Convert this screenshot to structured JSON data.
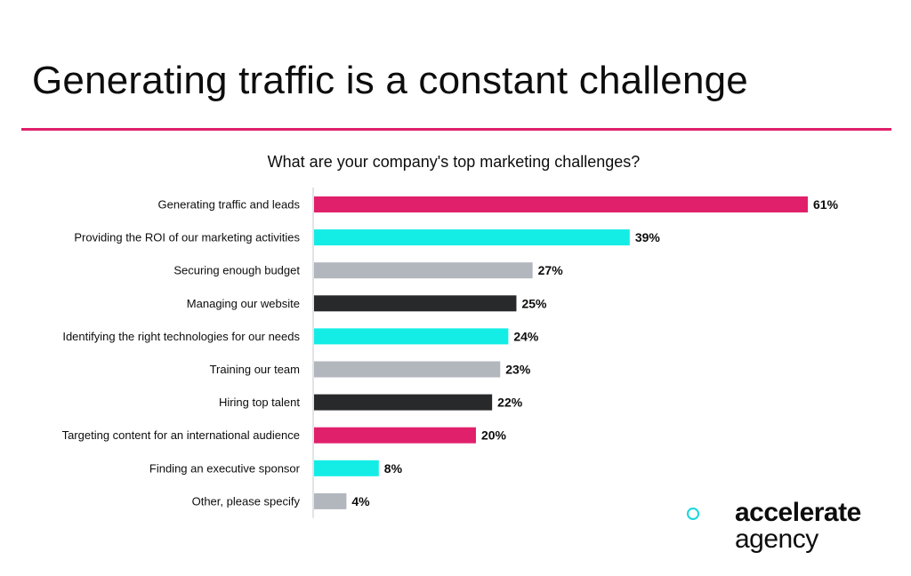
{
  "title": "Generating traffic is a constant challenge",
  "logo": {
    "line1": "accelerate",
    "line2": "agency"
  },
  "colors": {
    "pink": "#e0206b",
    "cyan": "#14ede6",
    "gray": "#b2b6bd",
    "dark": "#28292b",
    "text": "#0d0d0d"
  },
  "chart_data": {
    "type": "bar",
    "orientation": "horizontal",
    "subtitle": "What are your company's top marketing challenges?",
    "categories": [
      "Generating traffic and leads",
      "Providing the ROI of our marketing activities",
      "Securing enough budget",
      "Managing our website",
      "Identifying the right technologies for our needs",
      "Training our team",
      "Hiring top talent",
      "Targeting content for an international audience",
      "Finding an executive sponsor",
      "Other, please specify"
    ],
    "values": [
      61,
      39,
      27,
      25,
      24,
      23,
      22,
      20,
      8,
      4
    ],
    "value_labels": [
      "61%",
      "39%",
      "27%",
      "25%",
      "24%",
      "23%",
      "22%",
      "20%",
      "8%",
      "4%"
    ],
    "bar_colors": [
      "#e0206b",
      "#14ede6",
      "#b2b6bd",
      "#28292b",
      "#14ede6",
      "#b2b6bd",
      "#28292b",
      "#e0206b",
      "#14ede6",
      "#b2b6bd"
    ],
    "unit": "%",
    "xlim": [
      0,
      61
    ],
    "grid": false,
    "legend": "none"
  }
}
